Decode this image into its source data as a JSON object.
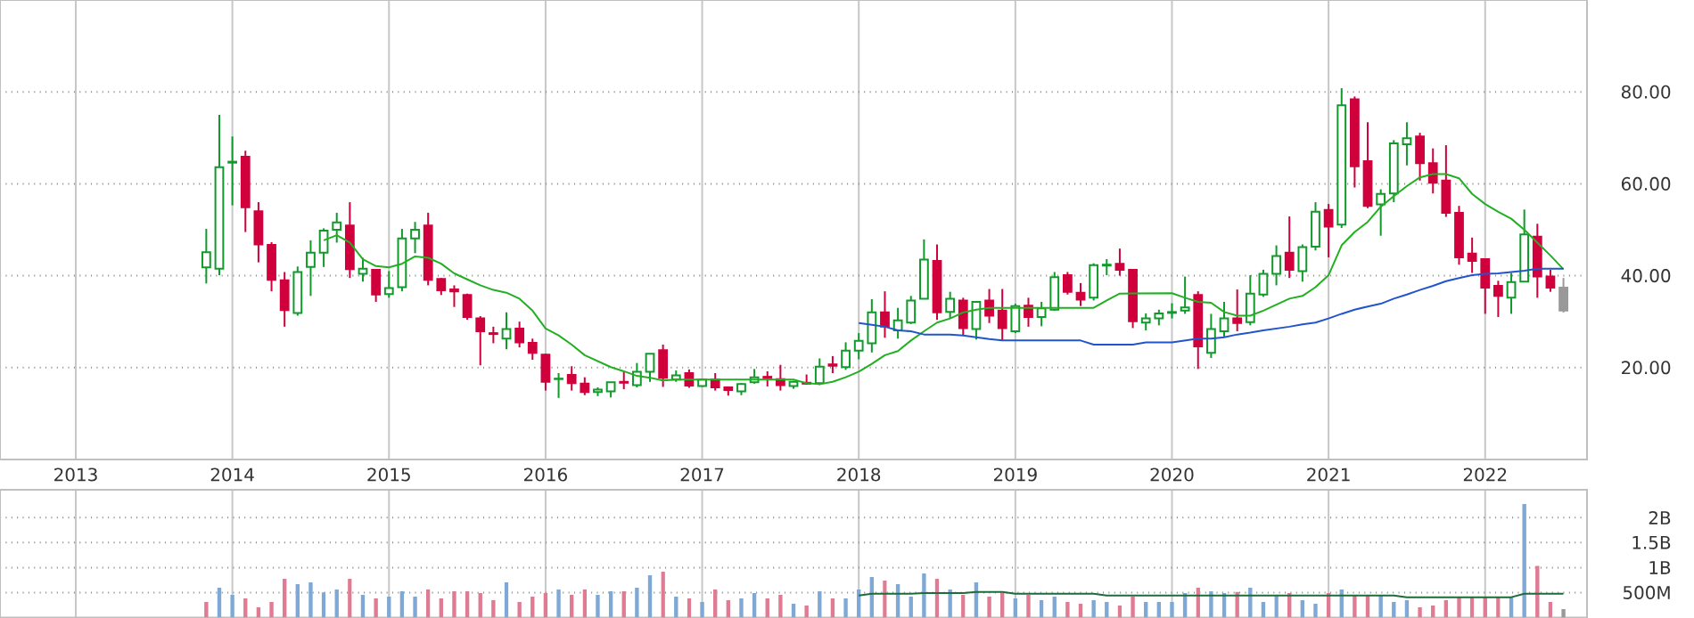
{
  "chart_data": [
    {
      "type": "candlestick",
      "x": [
        "2013-11",
        "2013-12",
        "2014-01",
        "2014-02",
        "2014-03",
        "2014-04",
        "2014-05",
        "2014-06",
        "2014-07",
        "2014-08",
        "2014-09",
        "2014-10",
        "2014-11",
        "2014-12",
        "2015-01",
        "2015-02",
        "2015-03",
        "2015-04",
        "2015-05",
        "2015-06",
        "2015-07",
        "2015-08",
        "2015-09",
        "2015-10",
        "2015-11",
        "2015-12",
        "2016-01",
        "2016-02",
        "2016-03",
        "2016-04",
        "2016-05",
        "2016-06",
        "2016-07",
        "2016-08",
        "2016-09",
        "2016-10",
        "2016-11",
        "2016-12",
        "2017-01",
        "2017-02",
        "2017-03",
        "2017-04",
        "2017-05",
        "2017-06",
        "2017-07",
        "2017-08",
        "2017-09",
        "2017-10",
        "2017-11",
        "2017-12",
        "2018-01",
        "2018-02",
        "2018-03",
        "2018-04",
        "2018-05",
        "2018-06",
        "2018-07",
        "2018-08",
        "2018-09",
        "2018-10",
        "2018-11",
        "2018-12",
        "2019-01",
        "2019-02",
        "2019-03",
        "2019-04",
        "2019-05",
        "2019-06",
        "2019-07",
        "2019-08",
        "2019-09",
        "2019-10",
        "2019-11",
        "2019-12",
        "2020-01",
        "2020-02",
        "2020-03",
        "2020-04",
        "2020-05",
        "2020-06",
        "2020-07",
        "2020-08",
        "2020-09",
        "2020-10",
        "2020-11",
        "2020-12",
        "2021-01",
        "2021-02",
        "2021-03",
        "2021-04",
        "2021-05",
        "2021-06",
        "2021-07",
        "2021-08",
        "2021-09",
        "2021-10",
        "2021-11",
        "2021-12",
        "2022-01",
        "2022-02",
        "2022-03",
        "2022-04",
        "2022-05",
        "2022-06",
        "2022-07"
      ],
      "xlim": [
        "2012-07-07",
        "2022-08-26"
      ],
      "xticks": [
        {
          "value": "2013-01",
          "label": "2013"
        },
        {
          "value": "2014-01",
          "label": "2014"
        },
        {
          "value": "2015-01",
          "label": "2015"
        },
        {
          "value": "2016-01",
          "label": "2016"
        },
        {
          "value": "2017-01",
          "label": "2017"
        },
        {
          "value": "2018-01",
          "label": "2018"
        },
        {
          "value": "2019-01",
          "label": "2019"
        },
        {
          "value": "2020-01",
          "label": "2020"
        },
        {
          "value": "2021-01",
          "label": "2021"
        },
        {
          "value": "2022-01",
          "label": "2022"
        }
      ],
      "ylim": [
        0,
        100
      ],
      "yticks": [
        {
          "value": 20,
          "label": "20.00"
        },
        {
          "value": 40,
          "label": "40.00"
        },
        {
          "value": 60,
          "label": "60.00"
        },
        {
          "value": 80,
          "label": "80.00"
        }
      ],
      "grid": true,
      "series": [
        {
          "ohlc": [
            [
              41.8,
              50.2,
              38.3,
              45.1
            ],
            [
              41.5,
              75.0,
              40.1,
              63.6
            ],
            [
              64.6,
              70.3,
              55.3,
              64.8
            ],
            [
              65.9,
              67.2,
              49.5,
              54.9
            ],
            [
              54.0,
              56.0,
              42.9,
              46.8
            ],
            [
              46.7,
              47.3,
              36.6,
              39.1
            ],
            [
              39.0,
              40.8,
              28.9,
              32.5
            ],
            [
              31.9,
              42.0,
              31.3,
              40.8
            ],
            [
              41.9,
              47.7,
              35.6,
              45.0
            ],
            [
              45.0,
              50.3,
              41.9,
              49.8
            ],
            [
              50.0,
              53.7,
              47.2,
              51.6
            ],
            [
              50.9,
              56.0,
              39.5,
              41.4
            ],
            [
              40.4,
              43.9,
              38.7,
              41.5
            ],
            [
              41.3,
              41.3,
              34.3,
              35.9
            ],
            [
              36.0,
              41.0,
              35.2,
              37.3
            ],
            [
              37.5,
              50.2,
              36.6,
              48.1
            ],
            [
              48.1,
              51.7,
              44.9,
              50.0
            ],
            [
              50.9,
              53.7,
              37.9,
              39.1
            ],
            [
              39.3,
              39.5,
              35.8,
              36.8
            ],
            [
              37.0,
              37.9,
              33.2,
              36.6
            ],
            [
              35.8,
              36.1,
              30.4,
              31.0
            ],
            [
              30.7,
              31.2,
              20.5,
              27.9
            ],
            [
              27.5,
              28.9,
              25.3,
              27.3
            ],
            [
              26.3,
              32.0,
              24.0,
              28.4
            ],
            [
              28.5,
              30.0,
              24.4,
              25.5
            ],
            [
              25.4,
              26.3,
              21.7,
              23.2
            ],
            [
              22.8,
              23.0,
              15.0,
              16.9
            ],
            [
              17.5,
              18.8,
              13.4,
              17.6
            ],
            [
              18.4,
              20.3,
              15.0,
              16.6
            ],
            [
              16.5,
              17.9,
              14.0,
              14.7
            ],
            [
              14.7,
              15.7,
              13.8,
              15.2
            ],
            [
              14.8,
              16.8,
              13.5,
              16.8
            ],
            [
              16.9,
              19.1,
              15.3,
              16.7
            ],
            [
              16.2,
              21.0,
              15.7,
              19.1
            ],
            [
              19.1,
              23.0,
              16.9,
              23.0
            ],
            [
              23.8,
              25.0,
              15.8,
              17.8
            ],
            [
              17.4,
              19.4,
              16.9,
              18.3
            ],
            [
              18.8,
              19.6,
              15.6,
              16.1
            ],
            [
              16.0,
              17.6,
              15.8,
              17.4
            ],
            [
              17.4,
              18.8,
              15.0,
              15.7
            ],
            [
              15.7,
              15.9,
              13.9,
              15.1
            ],
            [
              14.8,
              16.6,
              14.0,
              16.4
            ],
            [
              16.8,
              19.7,
              16.5,
              17.9
            ],
            [
              18.0,
              19.2,
              15.9,
              17.7
            ],
            [
              17.5,
              20.6,
              15.0,
              16.2
            ],
            [
              16.0,
              17.1,
              15.4,
              16.9
            ],
            [
              16.7,
              18.5,
              16.3,
              16.5
            ],
            [
              16.6,
              22.0,
              16.2,
              20.2
            ],
            [
              20.7,
              22.5,
              18.8,
              20.4
            ],
            [
              20.1,
              25.5,
              19.5,
              23.7
            ],
            [
              23.7,
              27.5,
              21.8,
              25.8
            ],
            [
              25.3,
              34.9,
              23.3,
              32.0
            ],
            [
              32.0,
              36.6,
              26.5,
              28.9
            ],
            [
              28.1,
              33.0,
              26.3,
              30.3
            ],
            [
              29.8,
              35.6,
              29.5,
              34.6
            ],
            [
              35.0,
              47.9,
              35.0,
              43.5
            ],
            [
              43.2,
              46.8,
              30.4,
              32.0
            ],
            [
              32.1,
              36.5,
              30.7,
              35.0
            ],
            [
              34.6,
              35.2,
              27.1,
              28.6
            ],
            [
              28.4,
              34.3,
              26.1,
              34.3
            ],
            [
              34.6,
              37.1,
              29.7,
              31.3
            ],
            [
              32.4,
              37.1,
              25.8,
              28.6
            ],
            [
              27.9,
              33.9,
              27.5,
              33.4
            ],
            [
              33.5,
              35.2,
              28.9,
              31.0
            ],
            [
              31.0,
              34.3,
              29.0,
              32.9
            ],
            [
              32.6,
              40.8,
              32.4,
              39.7
            ],
            [
              40.1,
              40.8,
              35.9,
              36.5
            ],
            [
              36.3,
              38.4,
              33.4,
              34.8
            ],
            [
              35.2,
              42.7,
              34.6,
              42.3
            ],
            [
              42.2,
              43.6,
              40.1,
              42.4
            ],
            [
              42.6,
              45.9,
              40.0,
              41.3
            ],
            [
              41.3,
              41.4,
              28.6,
              30.1
            ],
            [
              29.8,
              31.8,
              28.1,
              30.7
            ],
            [
              30.7,
              32.6,
              29.2,
              31.8
            ],
            [
              31.9,
              34.0,
              30.7,
              32.1
            ],
            [
              32.4,
              39.8,
              31.7,
              33.1
            ],
            [
              35.8,
              36.6,
              19.7,
              24.6
            ],
            [
              23.2,
              31.7,
              22.1,
              28.4
            ],
            [
              27.9,
              34.3,
              26.6,
              30.7
            ],
            [
              30.7,
              37.0,
              27.9,
              29.7
            ],
            [
              29.9,
              40.1,
              29.2,
              36.1
            ],
            [
              35.9,
              41.3,
              35.4,
              40.4
            ],
            [
              40.4,
              46.6,
              37.9,
              44.3
            ],
            [
              45.0,
              52.9,
              39.5,
              41.3
            ],
            [
              41.0,
              46.8,
              38.7,
              46.2
            ],
            [
              46.3,
              56.0,
              45.5,
              53.9
            ],
            [
              54.3,
              55.6,
              44.0,
              50.7
            ],
            [
              51.1,
              80.8,
              50.4,
              77.1
            ],
            [
              78.4,
              79.0,
              59.2,
              63.8
            ],
            [
              64.9,
              73.4,
              54.7,
              55.2
            ],
            [
              55.5,
              58.8,
              48.7,
              57.8
            ],
            [
              57.9,
              69.5,
              56.0,
              68.8
            ],
            [
              68.6,
              73.4,
              64.0,
              69.9
            ],
            [
              70.3,
              71.1,
              60.7,
              64.5
            ],
            [
              64.5,
              67.7,
              57.9,
              60.2
            ],
            [
              60.7,
              68.4,
              52.8,
              53.7
            ],
            [
              53.7,
              55.2,
              42.4,
              44.0
            ],
            [
              44.8,
              48.3,
              40.6,
              43.2
            ],
            [
              43.6,
              43.6,
              31.7,
              37.4
            ],
            [
              37.8,
              38.9,
              31.0,
              35.6
            ],
            [
              35.2,
              40.6,
              31.7,
              38.6
            ],
            [
              38.7,
              54.4,
              38.7,
              49.0
            ],
            [
              48.5,
              51.3,
              35.2,
              39.8
            ],
            [
              39.8,
              41.3,
              36.5,
              37.4
            ],
            [
              37.4,
              39.5,
              32.0,
              32.4
            ]
          ],
          "colors": [
            "#109a2a",
            "#109a2a",
            "#109a2a",
            "#d0003c",
            "#d0003c",
            "#d0003c",
            "#d0003c",
            "#109a2a",
            "#109a2a",
            "#109a2a",
            "#109a2a",
            "#d0003c",
            "#109a2a",
            "#d0003c",
            "#109a2a",
            "#109a2a",
            "#109a2a",
            "#d0003c",
            "#d0003c",
            "#d0003c",
            "#d0003c",
            "#d0003c",
            "#d0003c",
            "#109a2a",
            "#d0003c",
            "#d0003c",
            "#d0003c",
            "#109a2a",
            "#d0003c",
            "#d0003c",
            "#109a2a",
            "#109a2a",
            "#d0003c",
            "#109a2a",
            "#109a2a",
            "#d0003c",
            "#109a2a",
            "#d0003c",
            "#109a2a",
            "#d0003c",
            "#d0003c",
            "#109a2a",
            "#109a2a",
            "#d0003c",
            "#d0003c",
            "#109a2a",
            "#d0003c",
            "#109a2a",
            "#d0003c",
            "#109a2a",
            "#109a2a",
            "#109a2a",
            "#d0003c",
            "#109a2a",
            "#109a2a",
            "#109a2a",
            "#d0003c",
            "#109a2a",
            "#d0003c",
            "#109a2a",
            "#d0003c",
            "#d0003c",
            "#109a2a",
            "#d0003c",
            "#109a2a",
            "#109a2a",
            "#d0003c",
            "#d0003c",
            "#109a2a",
            "#109a2a",
            "#d0003c",
            "#d0003c",
            "#109a2a",
            "#109a2a",
            "#109a2a",
            "#109a2a",
            "#d0003c",
            "#109a2a",
            "#109a2a",
            "#d0003c",
            "#109a2a",
            "#109a2a",
            "#109a2a",
            "#d0003c",
            "#109a2a",
            "#109a2a",
            "#d0003c",
            "#109a2a",
            "#d0003c",
            "#d0003c",
            "#109a2a",
            "#109a2a",
            "#109a2a",
            "#d0003c",
            "#d0003c",
            "#d0003c",
            "#d0003c",
            "#d0003c",
            "#d0003c",
            "#d0003c",
            "#109a2a",
            "#109a2a",
            "#d0003c",
            "#d0003c",
            "#999999"
          ]
        },
        {
          "type": "line",
          "color": "#22b022",
          "x": [
            "2014-08",
            "2014-09",
            "2014-10",
            "2014-11",
            "2014-12",
            "2015-01",
            "2015-02",
            "2015-03",
            "2015-04",
            "2015-05",
            "2015-06",
            "2015-07",
            "2015-08",
            "2015-09",
            "2015-10",
            "2015-11",
            "2015-12",
            "2016-01",
            "2016-02",
            "2016-03",
            "2016-04",
            "2016-05",
            "2016-06",
            "2016-07",
            "2016-08",
            "2016-09",
            "2016-10",
            "2016-11",
            "2017-08",
            "2017-09",
            "2017-10",
            "2017-11",
            "2017-12",
            "2018-01",
            "2018-02",
            "2018-03",
            "2018-04",
            "2018-05",
            "2018-06",
            "2018-07",
            "2018-08",
            "2018-09",
            "2018-10",
            "2018-11",
            "2019-07",
            "2019-08",
            "2019-09",
            "2020-01",
            "2020-02",
            "2020-03",
            "2020-04",
            "2020-05",
            "2020-06",
            "2020-07",
            "2020-08",
            "2020-09",
            "2020-10",
            "2020-11",
            "2020-12",
            "2021-01",
            "2021-02",
            "2021-03",
            "2021-04",
            "2021-05",
            "2021-06",
            "2021-07",
            "2021-08",
            "2021-09",
            "2021-10",
            "2021-11",
            "2021-12",
            "2022-01",
            "2022-02",
            "2022-03",
            "2022-04",
            "2022-05",
            "2022-06",
            "2022-07"
          ],
          "values": [
            47.7,
            48.8,
            47.2,
            43.6,
            42.1,
            41.8,
            42.6,
            44.2,
            43.9,
            42.6,
            40.5,
            39.2,
            37.9,
            36.9,
            36.3,
            35.0,
            32.4,
            28.5,
            27.0,
            25.0,
            22.7,
            21.4,
            20.1,
            19.2,
            18.2,
            17.8,
            17.2,
            17.4,
            17.4,
            16.6,
            16.4,
            16.9,
            17.9,
            19.1,
            20.8,
            22.7,
            23.6,
            25.9,
            27.9,
            29.8,
            30.7,
            32.0,
            32.6,
            33.0,
            33.0,
            34.6,
            36.1,
            36.2,
            35.2,
            34.3,
            34.1,
            32.1,
            31.3,
            31.3,
            32.4,
            33.7,
            35.0,
            35.6,
            37.5,
            40.1,
            46.6,
            49.5,
            51.7,
            55.0,
            57.3,
            59.5,
            61.4,
            62.1,
            62.1,
            61.2,
            57.8,
            55.6,
            53.9,
            52.4,
            50.0,
            47.2,
            44.4,
            41.4
          ]
        },
        {
          "type": "line",
          "color": "#2255cc",
          "x": [
            "2018-01",
            "2018-02",
            "2018-03",
            "2018-04",
            "2018-05",
            "2018-06",
            "2018-08",
            "2018-09",
            "2018-10",
            "2018-11",
            "2018-12",
            "2019-06",
            "2019-07",
            "2019-10",
            "2019-11",
            "2020-01",
            "2020-02",
            "2020-03",
            "2020-04",
            "2020-05",
            "2020-06",
            "2020-07",
            "2020-08",
            "2020-09",
            "2020-10",
            "2020-11",
            "2020-12",
            "2021-01",
            "2021-02",
            "2021-03",
            "2021-04",
            "2021-05",
            "2021-06",
            "2021-07",
            "2021-08",
            "2021-09",
            "2021-10",
            "2021-11",
            "2021-12",
            "2022-01",
            "2022-02",
            "2022-03",
            "2022-04",
            "2022-05",
            "2022-07"
          ],
          "values": [
            29.7,
            29.3,
            28.9,
            28.1,
            27.9,
            27.2,
            27.2,
            27.0,
            26.6,
            26.2,
            25.9,
            25.9,
            25.0,
            25.0,
            25.5,
            25.5,
            25.9,
            26.3,
            26.3,
            26.6,
            27.2,
            27.6,
            28.1,
            28.5,
            28.9,
            29.4,
            29.8,
            30.7,
            31.7,
            32.6,
            33.3,
            33.9,
            35.0,
            35.9,
            36.9,
            37.8,
            38.8,
            39.5,
            40.1,
            40.4,
            40.5,
            40.8,
            41.1,
            41.5,
            41.5
          ]
        }
      ]
    },
    {
      "type": "bar",
      "x": [
        "2013-11",
        "2013-12",
        "2014-01",
        "2014-02",
        "2014-03",
        "2014-04",
        "2014-05",
        "2014-06",
        "2014-07",
        "2014-08",
        "2014-09",
        "2014-10",
        "2014-11",
        "2014-12",
        "2015-01",
        "2015-02",
        "2015-03",
        "2015-04",
        "2015-05",
        "2015-06",
        "2015-07",
        "2015-08",
        "2015-09",
        "2015-10",
        "2015-11",
        "2015-12",
        "2016-01",
        "2016-02",
        "2016-03",
        "2016-04",
        "2016-05",
        "2016-06",
        "2016-07",
        "2016-08",
        "2016-09",
        "2016-10",
        "2016-11",
        "2016-12",
        "2017-01",
        "2017-02",
        "2017-03",
        "2017-04",
        "2017-05",
        "2017-06",
        "2017-07",
        "2017-08",
        "2017-09",
        "2017-10",
        "2017-11",
        "2017-12",
        "2018-01",
        "2018-02",
        "2018-03",
        "2018-04",
        "2018-05",
        "2018-06",
        "2018-07",
        "2018-08",
        "2018-09",
        "2018-10",
        "2018-11",
        "2018-12",
        "2019-01",
        "2019-02",
        "2019-03",
        "2019-04",
        "2019-05",
        "2019-06",
        "2019-07",
        "2019-08",
        "2019-09",
        "2019-10",
        "2019-11",
        "2019-12",
        "2020-01",
        "2020-02",
        "2020-03",
        "2020-04",
        "2020-05",
        "2020-06",
        "2020-07",
        "2020-08",
        "2020-09",
        "2020-10",
        "2020-11",
        "2020-12",
        "2021-01",
        "2021-02",
        "2021-03",
        "2021-04",
        "2021-05",
        "2021-06",
        "2021-07",
        "2021-08",
        "2021-09",
        "2021-10",
        "2021-11",
        "2021-12",
        "2022-01",
        "2022-02",
        "2022-03",
        "2022-04",
        "2022-05",
        "2022-06",
        "2022-07"
      ],
      "xlim": [
        "2012-07-07",
        "2022-08-26"
      ],
      "xticks": [
        {
          "value": "2013-01",
          "label": null
        },
        {
          "value": "2014-01",
          "label": null
        },
        {
          "value": "2015-01",
          "label": null
        },
        {
          "value": "2016-01",
          "label": null
        },
        {
          "value": "2017-01",
          "label": null
        },
        {
          "value": "2018-01",
          "label": null
        },
        {
          "value": "2019-01",
          "label": null
        },
        {
          "value": "2020-01",
          "label": null
        },
        {
          "value": "2021-01",
          "label": null
        },
        {
          "value": "2022-01",
          "label": null
        }
      ],
      "ylim": [
        0,
        2560000000
      ],
      "yticks": [
        {
          "value": 500000000,
          "label": "500M"
        },
        {
          "value": 1000000000,
          "label": "1B"
        },
        {
          "value": 1500000000,
          "label": "1.5B"
        },
        {
          "value": 2000000000,
          "label": "2B"
        }
      ],
      "grid": true,
      "tick_labels": "y",
      "series": [
        {
          "values": [
            311000000,
            596000000,
            453000000,
            382000000,
            204000000,
            311000000,
            775000000,
            668000000,
            703000000,
            501000000,
            560000000,
            775000000,
            453000000,
            382000000,
            418000000,
            524000000,
            418000000,
            560000000,
            382000000,
            524000000,
            524000000,
            489000000,
            346000000,
            703000000,
            311000000,
            418000000,
            489000000,
            560000000,
            453000000,
            560000000,
            453000000,
            524000000,
            524000000,
            596000000,
            846000000,
            918000000,
            418000000,
            382000000,
            311000000,
            560000000,
            346000000,
            382000000,
            489000000,
            382000000,
            453000000,
            275000000,
            239000000,
            524000000,
            382000000,
            382000000,
            560000000,
            810000000,
            739000000,
            668000000,
            418000000,
            882000000,
            775000000,
            560000000,
            453000000,
            703000000,
            418000000,
            489000000,
            382000000,
            453000000,
            346000000,
            418000000,
            311000000,
            275000000,
            346000000,
            311000000,
            239000000,
            418000000,
            311000000,
            311000000,
            311000000,
            489000000,
            596000000,
            524000000,
            489000000,
            512000000,
            596000000,
            311000000,
            453000000,
            489000000,
            346000000,
            275000000,
            489000000,
            560000000,
            453000000,
            453000000,
            453000000,
            311000000,
            346000000,
            204000000,
            239000000,
            346000000,
            418000000,
            418000000,
            418000000,
            418000000,
            418000000,
            2274000000,
            1035000000,
            311000000,
            168000000
          ],
          "colors": [
            "#e07b94",
            "#7fa9d4",
            "#7fa9d4",
            "#e07b94",
            "#e07b94",
            "#e07b94",
            "#e07b94",
            "#7fa9d4",
            "#7fa9d4",
            "#7fa9d4",
            "#7fa9d4",
            "#e07b94",
            "#7fa9d4",
            "#e07b94",
            "#7fa9d4",
            "#7fa9d4",
            "#7fa9d4",
            "#e07b94",
            "#e07b94",
            "#e07b94",
            "#e07b94",
            "#e07b94",
            "#e07b94",
            "#7fa9d4",
            "#e07b94",
            "#e07b94",
            "#e07b94",
            "#7fa9d4",
            "#e07b94",
            "#e07b94",
            "#7fa9d4",
            "#7fa9d4",
            "#e07b94",
            "#7fa9d4",
            "#7fa9d4",
            "#e07b94",
            "#7fa9d4",
            "#e07b94",
            "#7fa9d4",
            "#e07b94",
            "#e07b94",
            "#7fa9d4",
            "#7fa9d4",
            "#e07b94",
            "#e07b94",
            "#7fa9d4",
            "#e07b94",
            "#7fa9d4",
            "#e07b94",
            "#7fa9d4",
            "#7fa9d4",
            "#7fa9d4",
            "#e07b94",
            "#7fa9d4",
            "#7fa9d4",
            "#7fa9d4",
            "#e07b94",
            "#7fa9d4",
            "#e07b94",
            "#7fa9d4",
            "#e07b94",
            "#e07b94",
            "#7fa9d4",
            "#e07b94",
            "#7fa9d4",
            "#7fa9d4",
            "#e07b94",
            "#e07b94",
            "#7fa9d4",
            "#7fa9d4",
            "#e07b94",
            "#e07b94",
            "#7fa9d4",
            "#7fa9d4",
            "#7fa9d4",
            "#7fa9d4",
            "#e07b94",
            "#7fa9d4",
            "#7fa9d4",
            "#e07b94",
            "#7fa9d4",
            "#7fa9d4",
            "#7fa9d4",
            "#e07b94",
            "#7fa9d4",
            "#7fa9d4",
            "#e07b94",
            "#7fa9d4",
            "#e07b94",
            "#e07b94",
            "#7fa9d4",
            "#7fa9d4",
            "#7fa9d4",
            "#e07b94",
            "#e07b94",
            "#e07b94",
            "#e07b94",
            "#e07b94",
            "#e07b94",
            "#e07b94",
            "#7fa9d4",
            "#7fa9d4",
            "#e07b94",
            "#e07b94",
            "#999999"
          ]
        },
        {
          "type": "line",
          "color": "#1e6b3c",
          "x": [
            "2018-01",
            "2018-02",
            "2018-05",
            "2018-06",
            "2018-09",
            "2018-10",
            "2018-12",
            "2019-01",
            "2019-07",
            "2019-08",
            "2021-06",
            "2021-07",
            "2022-03",
            "2022-04",
            "2022-07"
          ],
          "values": [
            441000000,
            477000000,
            477000000,
            489000000,
            489000000,
            512000000,
            512000000,
            477000000,
            477000000,
            441000000,
            441000000,
            406000000,
            406000000,
            477000000,
            477000000
          ]
        }
      ]
    }
  ]
}
